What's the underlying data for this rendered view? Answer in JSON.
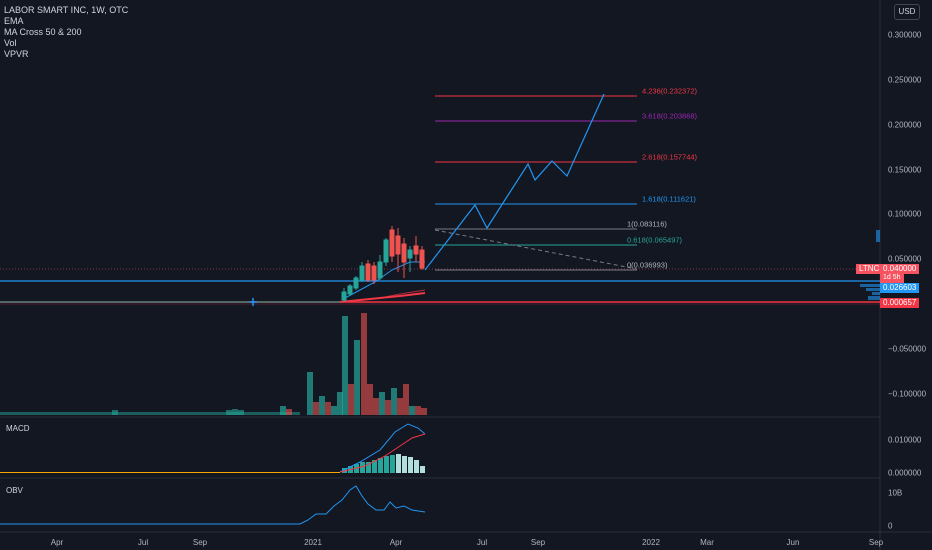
{
  "legend": {
    "symbol": "LABOR SMART INC, 1W, OTC",
    "indicators": [
      "EMA",
      "MA Cross 50 & 200",
      "Vol",
      "VPVR"
    ]
  },
  "currency_button": "USD",
  "price_axis": {
    "labels": [
      "0.300000",
      "0.250000",
      "0.200000",
      "0.150000",
      "0.100000",
      "0.050000",
      "0.000000",
      "−0.050000",
      "−0.100000"
    ],
    "last_price_tag": "0.040000",
    "last_price_countdown": "1d 5h",
    "ema_tag": "0.026603",
    "ma_tag": "0.000657",
    "symbol_tag": "LTNC",
    "colors": {
      "last": "#f7525f",
      "ema": "#2196f3",
      "ma": "#f23645"
    }
  },
  "fib_levels": [
    {
      "label": "4.236(0.232372)",
      "color": "#f23645"
    },
    {
      "label": "3.618(0.203868)",
      "color": "#9c27b0"
    },
    {
      "label": "2.618(0.157744)",
      "color": "#f23645"
    },
    {
      "label": "1.618(0.111621)",
      "color": "#2196f3"
    },
    {
      "label": "1(0.083116)",
      "color": "#b2b5be"
    },
    {
      "label": "0.618(0.065497)",
      "color": "#26a69a"
    },
    {
      "label": "0(0.036993)",
      "color": "#b2b5be"
    }
  ],
  "macd_pane": {
    "title": "MACD",
    "labels": [
      "0.010000",
      "0.000000"
    ]
  },
  "obv_pane": {
    "title": "OBV",
    "labels": [
      "10B",
      "0"
    ]
  },
  "time_axis": [
    "Apr",
    "Jul",
    "Sep",
    "2021",
    "Apr",
    "Jul",
    "Sep",
    "2022",
    "Mar",
    "Jun",
    "Sep"
  ],
  "colors": {
    "background": "#131722",
    "up": "#26a69a",
    "down": "#ef5350",
    "projection": "#2196f3"
  }
}
